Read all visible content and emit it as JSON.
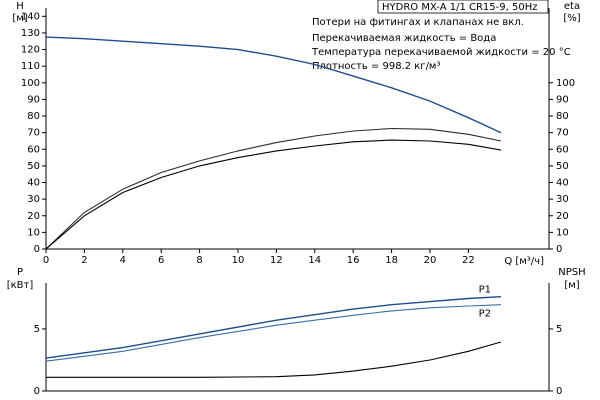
{
  "chart_data": [
    {
      "type": "line",
      "title": "HYDRO MX-A 1/1 CR15-9, 50Hz",
      "annotations": [
        "Потери на фитингах и клапанах не вкл.",
        "Перекачиваемая жидкость = Вода",
        "Температура перекачиваемой жидкости = 20 °C",
        "Плотность = 998.2 кг/м³"
      ],
      "xlabel": "Q [м³/ч]",
      "ylabel": "H",
      "yunit": "[м]",
      "y2label": "eta",
      "y2unit": "[%]",
      "x": [
        0,
        2,
        4,
        6,
        8,
        10,
        12,
        14,
        16,
        18,
        20,
        22,
        23.7
      ],
      "series": [
        {
          "color": "#1f4e8c",
          "values": [
            127.5,
            126.5,
            125,
            123.5,
            122,
            120,
            116,
            111,
            104,
            97,
            89,
            79,
            70
          ]
        },
        {
          "color": "#2b2b2b",
          "axis": "y2",
          "values": [
            0,
            22,
            36,
            46,
            53,
            59,
            64,
            68,
            71,
            72.5,
            72,
            69,
            65
          ]
        },
        {
          "color": "#000000",
          "axis": "y2",
          "values": [
            0,
            20,
            34,
            43,
            50,
            55,
            59,
            62,
            64.5,
            65.5,
            65,
            63,
            59.5
          ]
        }
      ],
      "xlim": [
        0,
        26.2
      ],
      "xticks": [
        0,
        2,
        4,
        6,
        8,
        10,
        12,
        14,
        16,
        18,
        20,
        22
      ],
      "ylim": [
        0,
        145
      ],
      "yticks": [
        0,
        10,
        20,
        30,
        40,
        50,
        60,
        70,
        80,
        90,
        100,
        110,
        120,
        130,
        140
      ],
      "y2lim": [
        0,
        145
      ],
      "y2ticks": [
        0,
        10,
        20,
        30,
        40,
        50,
        60,
        70,
        80,
        90,
        100
      ],
      "grid": false
    },
    {
      "type": "line",
      "ylabel": "P",
      "yunit": "[кВт]",
      "y2label": "NPSH",
      "y2unit": "[м]",
      "x": [
        0,
        4,
        8,
        12,
        14,
        16,
        18,
        20,
        22,
        23.7
      ],
      "series": [
        {
          "name": "P1",
          "color": "#1f4e8c",
          "values": [
            2.65,
            3.5,
            4.6,
            5.7,
            6.15,
            6.6,
            6.95,
            7.2,
            7.45,
            7.6
          ]
        },
        {
          "name": "P2",
          "color": "#3a6ea5",
          "values": [
            2.4,
            3.2,
            4.3,
            5.3,
            5.7,
            6.1,
            6.45,
            6.7,
            6.85,
            6.95
          ]
        },
        {
          "color": "#000000",
          "axis": "y2",
          "values": [
            1.1,
            1.1,
            1.1,
            1.15,
            1.3,
            1.6,
            2.0,
            2.5,
            3.2,
            3.95
          ]
        }
      ],
      "xlim": [
        0,
        26.2
      ],
      "ylim": [
        0,
        8.7
      ],
      "yticks": [
        0,
        5
      ],
      "y2lim": [
        0,
        8.7
      ],
      "y2ticks": [
        0,
        5
      ],
      "grid": false
    }
  ]
}
